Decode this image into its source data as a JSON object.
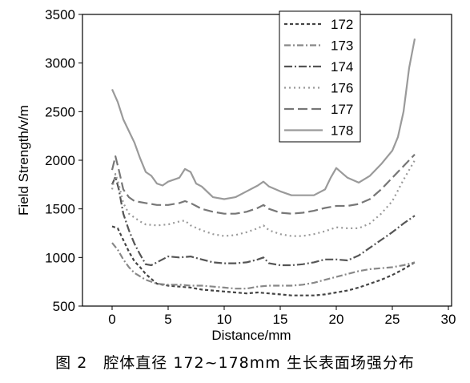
{
  "caption": "图 2　腔体直径 172~178mm 生长表面场强分布",
  "chart_data": {
    "type": "line",
    "xlabel": "Distance/mm",
    "ylabel": "Field Strength/v/m",
    "xlim": [
      -2,
      30
    ],
    "ylim": [
      500,
      3500
    ],
    "xticks": [
      0,
      5,
      10,
      15,
      20,
      25,
      30
    ],
    "yticks": [
      500,
      1000,
      1500,
      2000,
      2500,
      3000,
      3500
    ],
    "grid": false,
    "legend_position": "top-right",
    "series": [
      {
        "name": "172",
        "color": "#444444",
        "dash": "4,3",
        "x": [
          0,
          0.5,
          1,
          1.5,
          2,
          2.5,
          3,
          4,
          5,
          6,
          7,
          8,
          9,
          10,
          11,
          12,
          13,
          14,
          15,
          16,
          17,
          18,
          19,
          20,
          21,
          22,
          23,
          24,
          25,
          26,
          27
        ],
        "y": [
          1320,
          1300,
          1180,
          1060,
          960,
          900,
          830,
          730,
          710,
          700,
          690,
          670,
          660,
          650,
          640,
          630,
          640,
          630,
          620,
          610,
          610,
          610,
          620,
          640,
          660,
          690,
          730,
          770,
          820,
          880,
          950
        ]
      },
      {
        "name": "173",
        "color": "#888888",
        "dash": "8,3,2,3",
        "x": [
          0,
          0.5,
          1,
          1.5,
          2,
          3,
          4,
          5,
          6,
          7,
          8,
          9,
          10,
          11,
          12,
          13,
          14,
          15,
          16,
          17,
          18,
          19,
          20,
          21,
          22,
          23,
          24,
          25,
          26,
          27
        ],
        "y": [
          1150,
          1080,
          980,
          900,
          840,
          770,
          730,
          720,
          720,
          710,
          710,
          700,
          690,
          680,
          680,
          700,
          710,
          710,
          710,
          720,
          740,
          770,
          800,
          830,
          860,
          880,
          890,
          900,
          920,
          950
        ]
      },
      {
        "name": "174",
        "color": "#555555",
        "dash": "10,3,2,3",
        "x": [
          0,
          0.3,
          0.6,
          1,
          1.5,
          2,
          2.5,
          3,
          3.5,
          4,
          5,
          6,
          7,
          8,
          9,
          10,
          11,
          12,
          13,
          13.5,
          14,
          15,
          16,
          17,
          18,
          19,
          20,
          21,
          22,
          23,
          24,
          25,
          26,
          27
        ],
        "y": [
          1750,
          1830,
          1700,
          1450,
          1280,
          1140,
          1030,
          930,
          920,
          950,
          1010,
          1000,
          1010,
          980,
          950,
          940,
          940,
          950,
          980,
          1000,
          940,
          920,
          920,
          930,
          950,
          980,
          980,
          970,
          1020,
          1100,
          1180,
          1260,
          1350,
          1430
        ]
      },
      {
        "name": "176",
        "color": "#999999",
        "dash": "2,4",
        "x": [
          0,
          0.3,
          0.6,
          1,
          1.5,
          2,
          2.5,
          3,
          4,
          5,
          6,
          6.5,
          7,
          8,
          9,
          10,
          11,
          12,
          13,
          13.5,
          14,
          15,
          16,
          17,
          18,
          19,
          20,
          21,
          22,
          23,
          24,
          25,
          26,
          27
        ],
        "y": [
          1700,
          1860,
          1750,
          1560,
          1450,
          1410,
          1370,
          1340,
          1330,
          1340,
          1370,
          1380,
          1330,
          1280,
          1240,
          1220,
          1230,
          1260,
          1300,
          1330,
          1280,
          1240,
          1220,
          1220,
          1240,
          1270,
          1310,
          1300,
          1300,
          1350,
          1450,
          1580,
          1800,
          2000
        ]
      },
      {
        "name": "177",
        "color": "#777777",
        "dash": "12,5",
        "x": [
          0,
          0.3,
          0.6,
          1,
          1.5,
          2,
          3,
          4,
          5,
          6,
          6.5,
          7,
          8,
          9,
          10,
          11,
          12,
          13,
          13.5,
          14,
          15,
          16,
          17,
          18,
          19,
          20,
          21,
          22,
          23,
          24,
          25,
          26,
          27
        ],
        "y": [
          1900,
          2040,
          1900,
          1700,
          1620,
          1580,
          1560,
          1540,
          1540,
          1560,
          1580,
          1560,
          1500,
          1470,
          1450,
          1450,
          1470,
          1510,
          1540,
          1500,
          1460,
          1450,
          1460,
          1480,
          1510,
          1530,
          1530,
          1550,
          1600,
          1700,
          1820,
          1940,
          2060
        ]
      },
      {
        "name": "178",
        "color": "#9a9a9a",
        "dash": "",
        "x": [
          0,
          0.5,
          1,
          1.5,
          2,
          2.5,
          3,
          3.5,
          4,
          4.5,
          5,
          6,
          6.5,
          7,
          7.5,
          8,
          9,
          10,
          11,
          12,
          13,
          13.5,
          14,
          15,
          16,
          17,
          18,
          19,
          19.5,
          20,
          20.5,
          21,
          22,
          23,
          24,
          25,
          25.5,
          26,
          26.5,
          27
        ],
        "y": [
          2730,
          2600,
          2420,
          2300,
          2180,
          2020,
          1880,
          1840,
          1760,
          1740,
          1780,
          1820,
          1910,
          1880,
          1760,
          1730,
          1620,
          1600,
          1620,
          1680,
          1740,
          1780,
          1730,
          1680,
          1640,
          1640,
          1640,
          1700,
          1820,
          1920,
          1870,
          1820,
          1770,
          1840,
          1960,
          2100,
          2240,
          2500,
          2950,
          3250
        ]
      }
    ]
  }
}
